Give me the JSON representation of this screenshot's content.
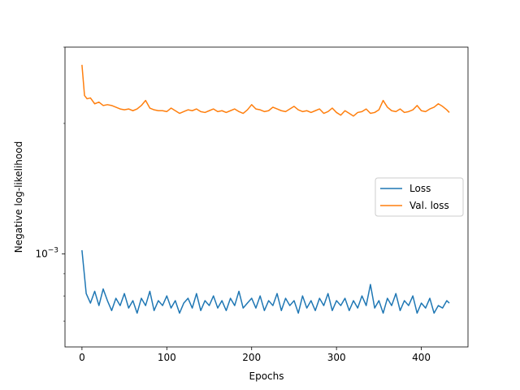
{
  "chart_data": {
    "type": "line",
    "xlabel": "Epochs",
    "ylabel": "Negative log-likelihood",
    "xlim": [
      -20,
      455
    ],
    "ylim": [
      0.00061,
      0.003
    ],
    "yscale": "log",
    "xticks": [
      0,
      100,
      200,
      300,
      400
    ],
    "yticks": [
      {
        "value": 0.001,
        "label_base": "10",
        "label_exp": "−3"
      }
    ],
    "legend": {
      "position": "center-right",
      "entries": [
        "Loss",
        "Val. loss"
      ]
    },
    "colors": {
      "Loss": "#1f77b4",
      "Val. loss": "#ff7f0e"
    },
    "series": [
      {
        "name": "Loss",
        "x": [
          0,
          5,
          10,
          15,
          20,
          25,
          30,
          35,
          40,
          45,
          50,
          55,
          60,
          65,
          70,
          75,
          80,
          85,
          90,
          95,
          100,
          105,
          110,
          115,
          120,
          125,
          130,
          135,
          140,
          145,
          150,
          155,
          160,
          165,
          170,
          175,
          180,
          185,
          190,
          195,
          200,
          205,
          210,
          215,
          220,
          225,
          230,
          235,
          240,
          245,
          250,
          255,
          260,
          265,
          270,
          275,
          280,
          285,
          290,
          295,
          300,
          305,
          310,
          315,
          320,
          325,
          330,
          335,
          340,
          345,
          350,
          355,
          360,
          365,
          370,
          375,
          380,
          385,
          390,
          395,
          400,
          405,
          410,
          415,
          420,
          425,
          430,
          433
        ],
        "y": [
          0.00102,
          0.00081,
          0.00077,
          0.00082,
          0.00076,
          0.00083,
          0.00078,
          0.00074,
          0.00079,
          0.00076,
          0.00081,
          0.00075,
          0.00078,
          0.00073,
          0.00079,
          0.00076,
          0.00082,
          0.00074,
          0.00078,
          0.00076,
          0.0008,
          0.00075,
          0.00078,
          0.00073,
          0.00077,
          0.00079,
          0.00075,
          0.00081,
          0.00074,
          0.00078,
          0.00076,
          0.0008,
          0.00075,
          0.00078,
          0.00074,
          0.00079,
          0.00076,
          0.00082,
          0.00075,
          0.00077,
          0.00079,
          0.00075,
          0.0008,
          0.00074,
          0.00078,
          0.00076,
          0.00081,
          0.00074,
          0.00079,
          0.00076,
          0.00078,
          0.00073,
          0.0008,
          0.00075,
          0.00078,
          0.00074,
          0.00079,
          0.00076,
          0.00081,
          0.00074,
          0.00078,
          0.00076,
          0.00079,
          0.00074,
          0.00078,
          0.00075,
          0.0008,
          0.00076,
          0.00085,
          0.00075,
          0.00078,
          0.00073,
          0.00079,
          0.00076,
          0.00081,
          0.00074,
          0.00078,
          0.00076,
          0.0008,
          0.00073,
          0.00077,
          0.00075,
          0.00079,
          0.00073,
          0.00076,
          0.00075,
          0.00078,
          0.00077
        ]
      },
      {
        "name": "Val. loss",
        "x": [
          0,
          3,
          6,
          10,
          15,
          20,
          25,
          30,
          35,
          40,
          45,
          50,
          55,
          60,
          65,
          70,
          75,
          80,
          85,
          90,
          95,
          100,
          105,
          110,
          115,
          120,
          125,
          130,
          135,
          140,
          145,
          150,
          155,
          160,
          165,
          170,
          175,
          180,
          185,
          190,
          195,
          200,
          205,
          210,
          215,
          220,
          225,
          230,
          235,
          240,
          245,
          250,
          255,
          260,
          265,
          270,
          275,
          280,
          285,
          290,
          295,
          300,
          305,
          310,
          315,
          320,
          325,
          330,
          335,
          340,
          345,
          350,
          355,
          360,
          365,
          370,
          375,
          380,
          385,
          390,
          395,
          400,
          405,
          410,
          415,
          420,
          425,
          430,
          433
        ],
        "y": [
          0.00273,
          0.00232,
          0.00228,
          0.00229,
          0.00222,
          0.00224,
          0.0022,
          0.00221,
          0.0022,
          0.00218,
          0.00216,
          0.00215,
          0.00216,
          0.00214,
          0.00216,
          0.0022,
          0.00226,
          0.00217,
          0.00215,
          0.00214,
          0.00214,
          0.00213,
          0.00217,
          0.00214,
          0.00211,
          0.00213,
          0.00215,
          0.00214,
          0.00216,
          0.00213,
          0.00212,
          0.00214,
          0.00216,
          0.00213,
          0.00214,
          0.00212,
          0.00214,
          0.00216,
          0.00213,
          0.00211,
          0.00215,
          0.00221,
          0.00216,
          0.00215,
          0.00213,
          0.00214,
          0.00218,
          0.00216,
          0.00214,
          0.00213,
          0.00216,
          0.00219,
          0.00215,
          0.00213,
          0.00214,
          0.00212,
          0.00214,
          0.00216,
          0.00211,
          0.00213,
          0.00217,
          0.00212,
          0.00209,
          0.00214,
          0.00211,
          0.00208,
          0.00212,
          0.00213,
          0.00216,
          0.00211,
          0.00212,
          0.00215,
          0.00226,
          0.00218,
          0.00214,
          0.00213,
          0.00216,
          0.00212,
          0.00213,
          0.00215,
          0.0022,
          0.00214,
          0.00213,
          0.00216,
          0.00218,
          0.00222,
          0.00219,
          0.00215,
          0.00212
        ]
      }
    ]
  }
}
